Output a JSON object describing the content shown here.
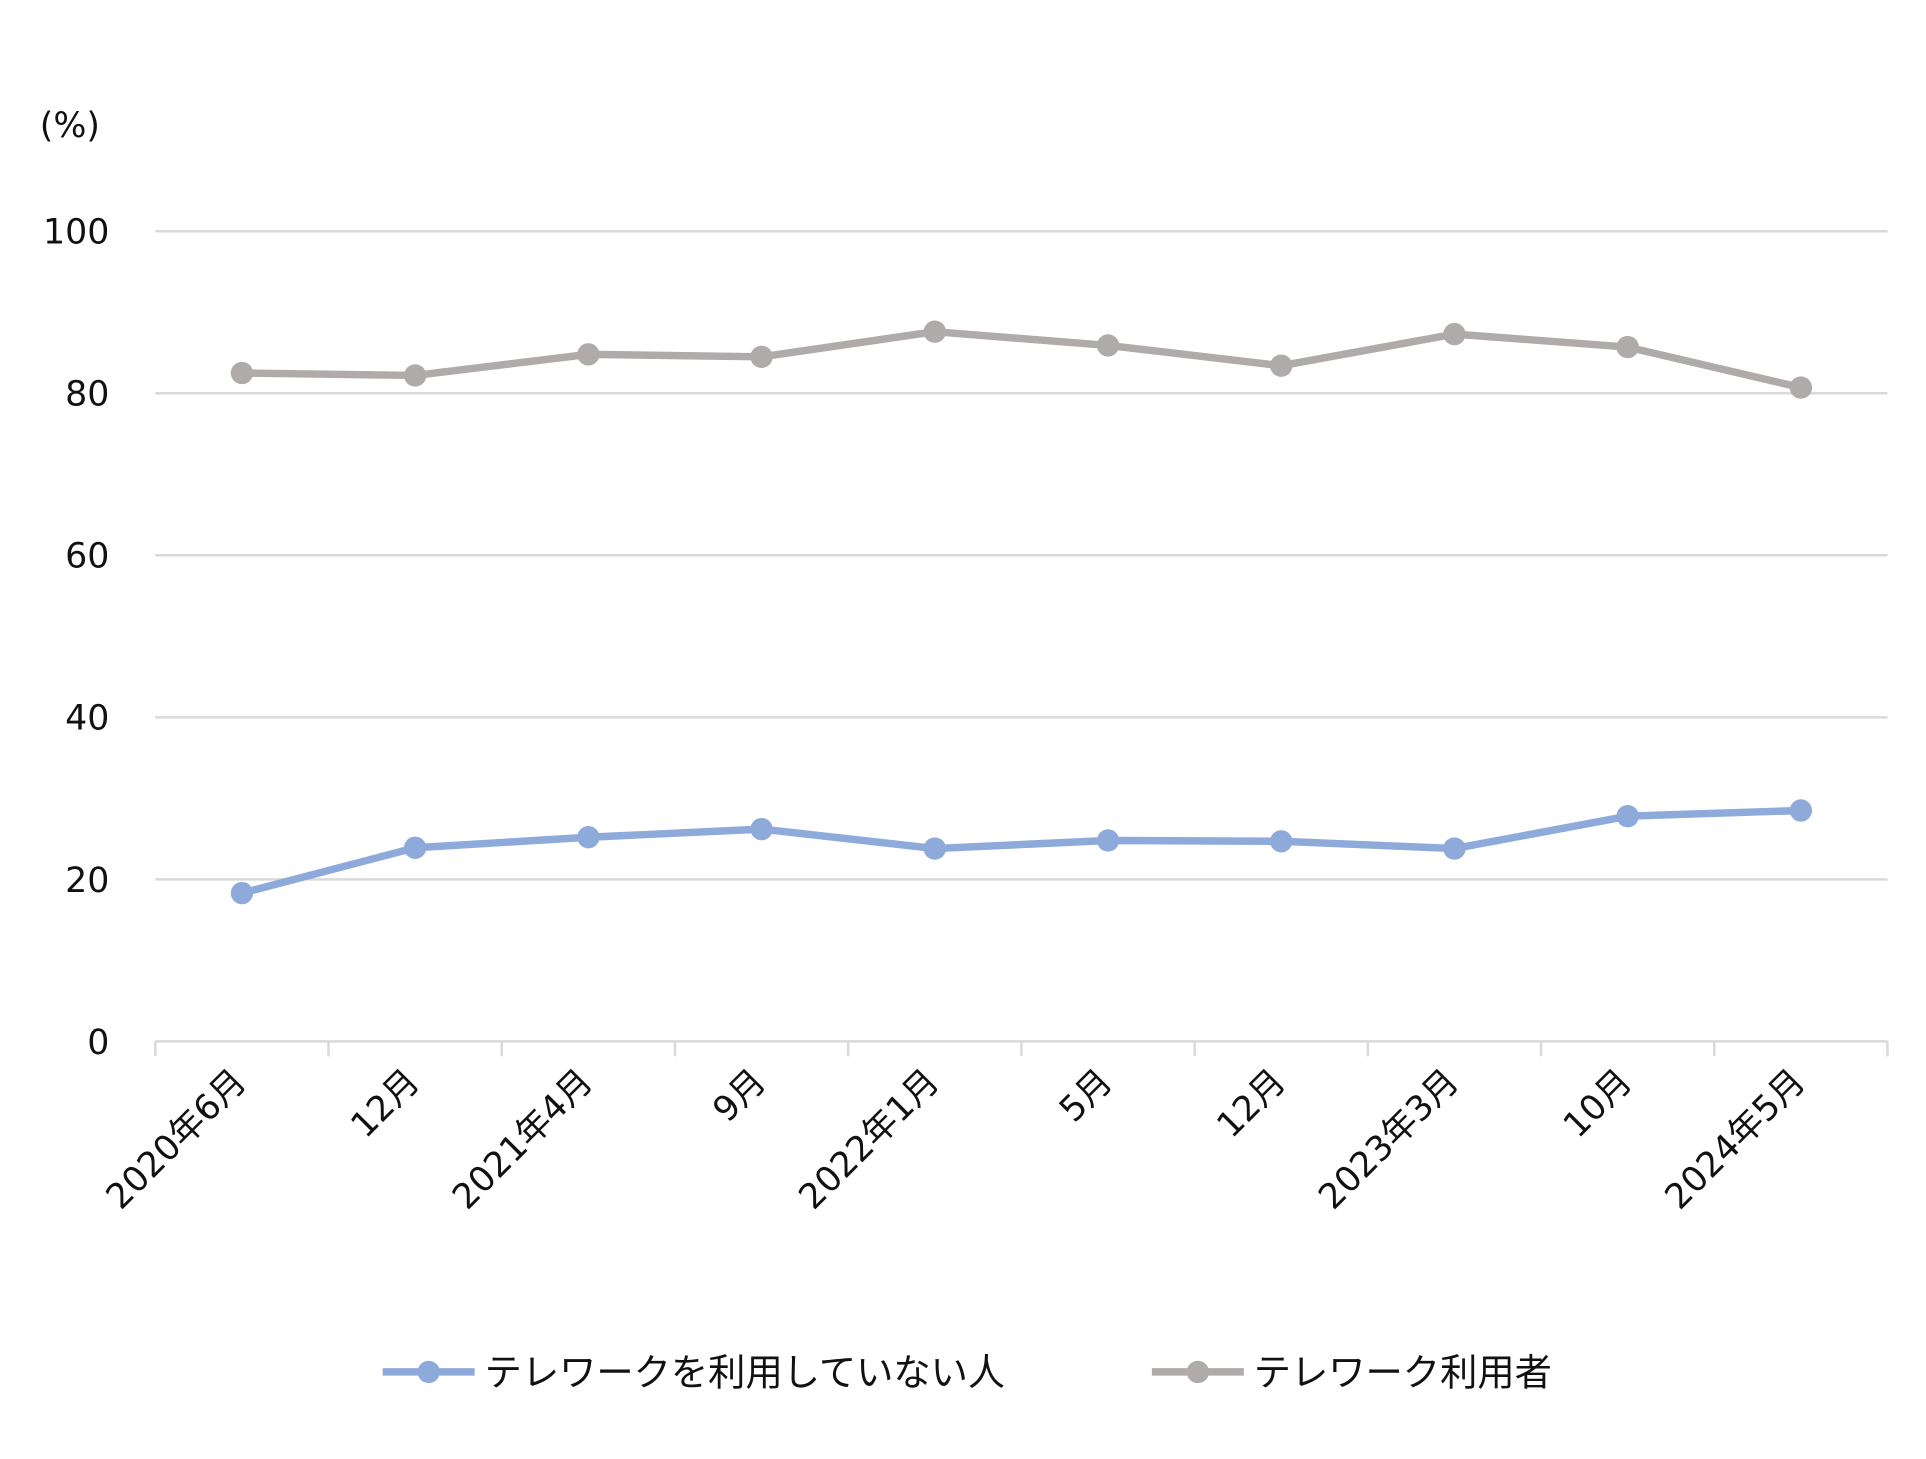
{
  "chart_data": {
    "type": "line",
    "title": "",
    "ylabel": "(%)",
    "xlabel": "",
    "ylim": [
      0,
      100
    ],
    "yticks": [
      0,
      20,
      40,
      60,
      80,
      100
    ],
    "grid": true,
    "legend_position": "bottom",
    "categories": [
      "2020年6月",
      "12月",
      "2021年4月",
      "9月",
      "2022年1月",
      "5月",
      "12月",
      "2023年3月",
      "10月",
      "2024年5月"
    ],
    "series": [
      {
        "name": "テレワークを利用していない人",
        "color": "#8eaadb",
        "values": [
          18.3,
          23.9,
          25.2,
          26.2,
          23.8,
          24.8,
          24.7,
          23.8,
          27.8,
          28.5
        ]
      },
      {
        "name": "テレワーク利用者",
        "color": "#afabab",
        "values": [
          82.5,
          82.2,
          84.8,
          84.5,
          87.6,
          85.9,
          83.4,
          87.3,
          85.7,
          80.7
        ]
      }
    ]
  }
}
